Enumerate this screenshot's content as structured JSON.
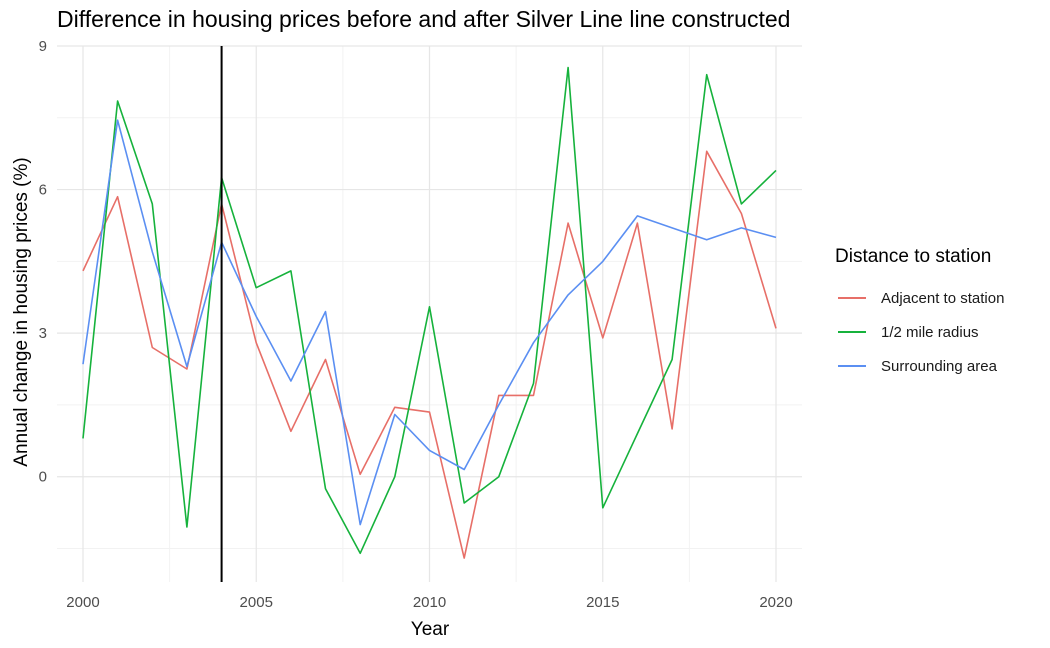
{
  "chart_data": {
    "type": "line",
    "title": "Difference in housing prices before and after Silver Line line constructed",
    "xlabel": "Year",
    "ylabel": "Annual change in housing prices (%)",
    "xlim": [
      1999.25,
      2020.75
    ],
    "ylim": [
      -2.2,
      9.0
    ],
    "x_ticks": [
      2000,
      2005,
      2010,
      2015,
      2020
    ],
    "y_ticks": [
      0,
      3,
      6,
      9
    ],
    "grid": true,
    "legend_position": "right",
    "legend_title": "Distance to station",
    "vline": 2004,
    "x": [
      2000,
      2001,
      2002,
      2003,
      2004,
      2005,
      2006,
      2007,
      2008,
      2009,
      2010,
      2011,
      2012,
      2013,
      2014,
      2015,
      2016,
      2017,
      2018,
      2019,
      2020
    ],
    "series": [
      {
        "name": "Adjacent to station",
        "color": "#e76f68",
        "values": [
          4.3,
          5.85,
          2.7,
          2.25,
          5.7,
          2.8,
          0.95,
          2.45,
          0.05,
          1.45,
          1.35,
          -1.7,
          1.7,
          1.7,
          5.3,
          2.9,
          5.3,
          1.0,
          6.8,
          5.5,
          3.1
        ]
      },
      {
        "name": "1/2 mile radius",
        "color": "#16b23c",
        "values": [
          0.8,
          7.85,
          5.7,
          -1.05,
          6.25,
          3.95,
          4.3,
          -0.25,
          -1.6,
          0.0,
          3.55,
          -0.55,
          0.0,
          1.95,
          8.55,
          -0.65,
          0.9,
          2.45,
          8.4,
          5.7,
          6.4
        ]
      },
      {
        "name": "Surrounding area",
        "color": "#5b8ff2",
        "values": [
          2.35,
          7.45,
          4.7,
          2.3,
          4.9,
          3.35,
          2.0,
          3.45,
          -1.0,
          1.3,
          0.55,
          0.15,
          1.5,
          2.8,
          3.8,
          4.5,
          5.45,
          5.2,
          4.95,
          5.2,
          5.0
        ]
      }
    ]
  }
}
